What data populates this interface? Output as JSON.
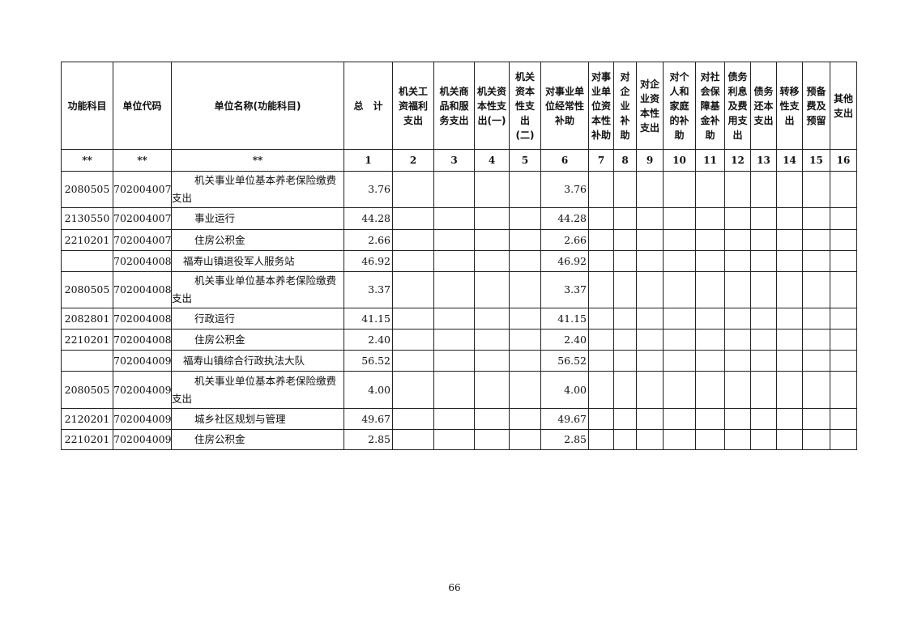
{
  "table": {
    "headers": [
      "功能科目",
      "单位代码",
      "单位名称(功能科目)",
      "总　计",
      "机关工\n资福利\n支出",
      "机关商\n品和服\n务支出",
      "机关资\n本性支\n出(一)",
      "机关\n资本\n性支\n出\n(二)",
      "对事业单\n位经常性\n补助",
      "对事\n业单\n位资\n本性\n补助",
      "对\n企\n业\n补\n助",
      "对企\n业资\n本性\n支出",
      "对个\n人和\n家庭\n的补\n助",
      "对社\n会保\n障基\n金补\n助",
      "债务\n利息\n及费\n用支\n出",
      "债务\n还本\n支出",
      "转移\n性支\n出",
      "预备\n费及\n预留",
      "其他\n支出"
    ],
    "index_row": [
      "**",
      "**",
      "**",
      "1",
      "2",
      "3",
      "4",
      "5",
      "6",
      "7",
      "8",
      "9",
      "10",
      "11",
      "12",
      "13",
      "14",
      "15",
      "16"
    ],
    "rows": [
      {
        "code": "2080505",
        "unit": "702004007",
        "name": "机关事业单位基本养老保险缴费支出",
        "type": "item",
        "total": "3.76",
        "c6": "3.76"
      },
      {
        "code": "2130550",
        "unit": "702004007",
        "name": "事业运行",
        "type": "item",
        "total": "44.28",
        "c6": "44.28"
      },
      {
        "code": "2210201",
        "unit": "702004007",
        "name": "住房公积金",
        "type": "item",
        "total": "2.66",
        "c6": "2.66"
      },
      {
        "code": "",
        "unit": "702004008",
        "name": "福寿山镇退役军人服务站",
        "type": "unit",
        "total": "46.92",
        "c6": "46.92"
      },
      {
        "code": "2080505",
        "unit": "702004008",
        "name": "机关事业单位基本养老保险缴费支出",
        "type": "item",
        "total": "3.37",
        "c6": "3.37"
      },
      {
        "code": "2082801",
        "unit": "702004008",
        "name": "行政运行",
        "type": "item",
        "total": "41.15",
        "c6": "41.15"
      },
      {
        "code": "2210201",
        "unit": "702004008",
        "name": "住房公积金",
        "type": "item",
        "total": "2.40",
        "c6": "2.40"
      },
      {
        "code": "",
        "unit": "702004009",
        "name": "福寿山镇综合行政执法大队",
        "type": "unit",
        "total": "56.52",
        "c6": "56.52"
      },
      {
        "code": "2080505",
        "unit": "702004009",
        "name": "机关事业单位基本养老保险缴费支出",
        "type": "item",
        "total": "4.00",
        "c6": "4.00"
      },
      {
        "code": "2120201",
        "unit": "702004009",
        "name": "城乡社区规划与管理",
        "type": "item",
        "total": "49.67",
        "c6": "49.67"
      },
      {
        "code": "2210201",
        "unit": "702004009",
        "name": "住房公积金",
        "type": "item",
        "total": "2.85",
        "c6": "2.85"
      }
    ]
  },
  "page_number": "66"
}
